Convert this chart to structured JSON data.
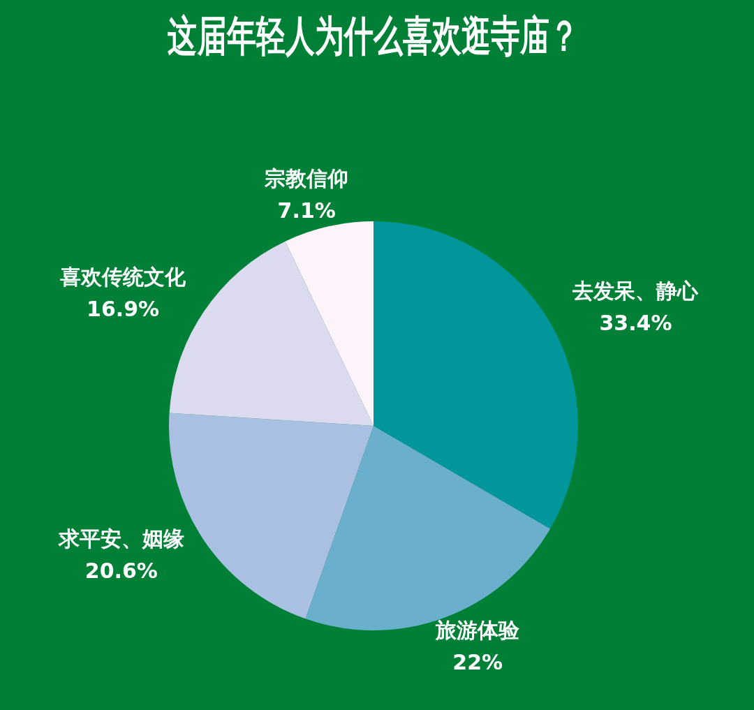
{
  "chart_data": {
    "type": "pie",
    "title": "这届年轻人为什么喜欢逛寺庙？",
    "categories": [
      "去发呆、静心",
      "旅游体验",
      "求平安、姻缘",
      "喜欢传统文化",
      "宗教信仰"
    ],
    "values": [
      33.4,
      22,
      20.6,
      16.9,
      7.1
    ],
    "value_labels": [
      "33.4%",
      "22%",
      "20.6%",
      "16.9%",
      "7.1%"
    ],
    "colors": [
      "#00969b",
      "#6aafcb",
      "#aac0e2",
      "#dcdaee",
      "#fdf3fb"
    ],
    "legend": false
  }
}
